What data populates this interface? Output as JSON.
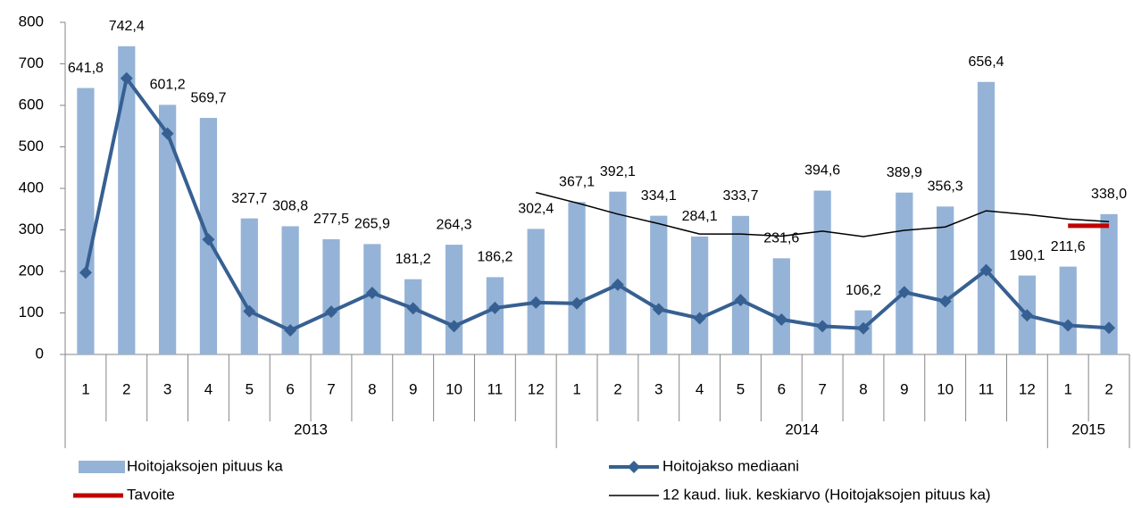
{
  "chart_data": {
    "type": "bar",
    "categories": [
      "1",
      "2",
      "3",
      "4",
      "5",
      "6",
      "7",
      "8",
      "9",
      "10",
      "11",
      "12",
      "1",
      "2",
      "3",
      "4",
      "5",
      "6",
      "7",
      "8",
      "9",
      "10",
      "11",
      "12",
      "1",
      "2"
    ],
    "groups": [
      {
        "name": "2013",
        "span": 12
      },
      {
        "name": "2014",
        "span": 12
      },
      {
        "name": "2015",
        "span": 2
      }
    ],
    "ylim": [
      0,
      800
    ],
    "yticks": [
      0,
      100,
      200,
      300,
      400,
      500,
      600,
      700,
      800
    ],
    "grid": false,
    "series": [
      {
        "name": "Hoitojaksojen pituus ka",
        "type": "bar",
        "color": "#95b3d7",
        "values": [
          641.8,
          742.4,
          601.2,
          569.7,
          327.7,
          308.8,
          277.5,
          265.9,
          181.2,
          264.3,
          186.2,
          302.4,
          367.1,
          392.1,
          334.1,
          284.1,
          333.7,
          231.6,
          394.6,
          106.2,
          389.9,
          356.3,
          656.4,
          190.1,
          211.6,
          338.0
        ],
        "value_labels": [
          "641,8",
          "742,4",
          "601,2",
          "569,7",
          "327,7",
          "308,8",
          "277,5",
          "265,9",
          "181,2",
          "264,3",
          "186,2",
          "302,4",
          "367,1",
          "392,1",
          "334,1",
          "284,1",
          "333,7",
          "231,6",
          "394,6",
          "106,2",
          "389,9",
          "356,3",
          "656,4",
          "190,1",
          "211,6",
          "338,0"
        ]
      },
      {
        "name": "Hoitojakso mediaani",
        "type": "line",
        "marker": "diamond",
        "color": "#376092",
        "values": [
          197,
          665,
          532,
          277,
          104,
          58,
          103,
          148,
          111,
          68,
          112,
          125,
          123,
          168,
          109,
          87,
          131,
          84,
          68,
          63,
          150,
          128,
          203,
          94,
          70,
          64
        ]
      },
      {
        "name": "Tavoite",
        "type": "line",
        "color": "#c00000",
        "values": [
          null,
          null,
          null,
          null,
          null,
          null,
          null,
          null,
          null,
          null,
          null,
          null,
          null,
          null,
          null,
          null,
          null,
          null,
          null,
          null,
          null,
          null,
          null,
          null,
          310,
          310
        ]
      },
      {
        "name": "12 kaud. liuk. keskiarvo (Hoitojaksojen pituus ka)",
        "type": "line",
        "color": "#000000",
        "values": [
          null,
          null,
          null,
          null,
          null,
          null,
          null,
          null,
          null,
          null,
          null,
          390,
          365,
          338,
          315,
          290,
          290,
          285,
          297,
          284,
          299,
          307,
          346,
          337,
          326,
          320
        ]
      }
    ]
  }
}
